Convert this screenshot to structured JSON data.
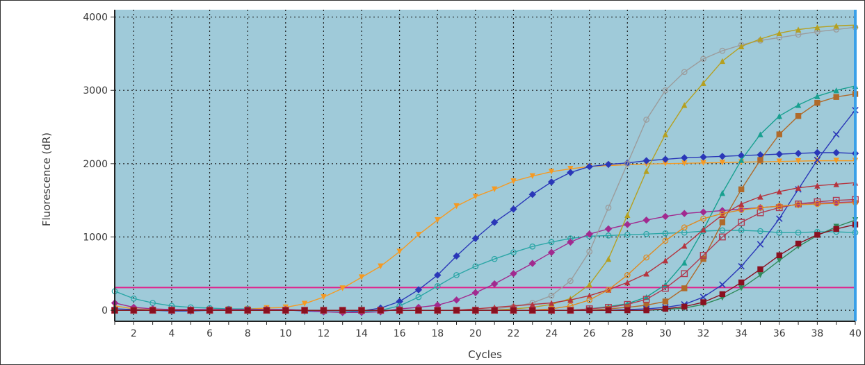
{
  "chart_data": {
    "type": "line",
    "title": "",
    "xlabel": "Cycles",
    "ylabel": "Fluorescence (dR)",
    "xlim": [
      1,
      40
    ],
    "ylim": [
      -150,
      4100
    ],
    "x_ticks": [
      "2",
      "4",
      "6",
      "8",
      "10",
      "12",
      "14",
      "16",
      "18",
      "20",
      "22",
      "24",
      "26",
      "28",
      "30",
      "32",
      "34",
      "36",
      "38",
      "40"
    ],
    "y_ticks": [
      "0",
      "1000",
      "2000",
      "3000",
      "4000"
    ],
    "grid": true,
    "legend": "none",
    "threshold": 310,
    "colors": {
      "plot_background": "#9fcad9",
      "grid": "#1a1a1a",
      "axis": "#222222",
      "threshold": "#e0218a",
      "end_marker": "#3aa0e8"
    },
    "series": [
      {
        "color": "#f59a23",
        "marker": "triangle-down",
        "values": [
          60,
          20,
          10,
          5,
          5,
          10,
          15,
          20,
          30,
          40,
          90,
          180,
          300,
          450,
          600,
          800,
          1030,
          1230,
          1420,
          1550,
          1650,
          1760,
          1830,
          1890,
          1930,
          1960,
          1975,
          1985,
          1995,
          2000,
          2005,
          2010,
          2015,
          2020,
          2025,
          2030,
          2035,
          2040,
          2040,
          2040
        ]
      },
      {
        "color": "#2a37b8",
        "marker": "diamond",
        "values": [
          20,
          10,
          0,
          -10,
          -10,
          0,
          5,
          5,
          10,
          5,
          -10,
          -20,
          -20,
          -10,
          30,
          120,
          280,
          480,
          740,
          980,
          1200,
          1380,
          1580,
          1750,
          1880,
          1960,
          1990,
          2010,
          2040,
          2060,
          2080,
          2090,
          2100,
          2110,
          2120,
          2130,
          2140,
          2150,
          2150,
          2140
        ]
      },
      {
        "color": "#2aa6a6",
        "marker": "circle",
        "values": [
          260,
          160,
          100,
          60,
          40,
          30,
          20,
          20,
          10,
          10,
          0,
          -20,
          -20,
          -20,
          0,
          60,
          180,
          330,
          480,
          600,
          700,
          790,
          870,
          930,
          980,
          1010,
          1020,
          1030,
          1040,
          1050,
          1060,
          1080,
          1090,
          1090,
          1080,
          1060,
          1060,
          1070,
          1070,
          1060
        ]
      },
      {
        "color": "#a12a8f",
        "marker": "diamond",
        "values": [
          100,
          40,
          20,
          10,
          10,
          10,
          10,
          10,
          10,
          10,
          0,
          -20,
          -30,
          -30,
          -20,
          20,
          40,
          70,
          140,
          240,
          360,
          500,
          640,
          790,
          930,
          1040,
          1110,
          1170,
          1230,
          1280,
          1320,
          1340,
          1360,
          1380,
          1400,
          1420,
          1440,
          1460,
          1470,
          1480
        ]
      },
      {
        "color": "#9c9c9c",
        "marker": "circle",
        "values": [
          0,
          0,
          0,
          0,
          0,
          0,
          0,
          0,
          0,
          0,
          0,
          0,
          0,
          0,
          0,
          0,
          0,
          0,
          0,
          10,
          20,
          50,
          100,
          200,
          400,
          800,
          1400,
          2000,
          2600,
          3000,
          3250,
          3430,
          3540,
          3620,
          3680,
          3720,
          3760,
          3800,
          3830,
          3860
        ]
      },
      {
        "color": "#b5a020",
        "marker": "triangle-up",
        "values": [
          0,
          0,
          0,
          0,
          0,
          0,
          0,
          0,
          0,
          0,
          0,
          0,
          0,
          0,
          0,
          0,
          0,
          0,
          0,
          0,
          0,
          20,
          40,
          80,
          160,
          350,
          700,
          1300,
          1900,
          2400,
          2800,
          3100,
          3400,
          3600,
          3700,
          3780,
          3830,
          3860,
          3880,
          3890
        ]
      },
      {
        "color": "#18a090",
        "marker": "triangle-up",
        "values": [
          0,
          0,
          0,
          0,
          0,
          0,
          0,
          0,
          0,
          0,
          0,
          0,
          0,
          0,
          0,
          0,
          0,
          0,
          0,
          0,
          0,
          0,
          0,
          0,
          0,
          20,
          50,
          90,
          180,
          350,
          650,
          1100,
          1600,
          2050,
          2400,
          2650,
          2800,
          2920,
          3000,
          3060
        ]
      },
      {
        "color": "#b06a2a",
        "marker": "square",
        "values": [
          0,
          0,
          0,
          0,
          0,
          0,
          0,
          0,
          0,
          0,
          0,
          0,
          0,
          0,
          0,
          0,
          0,
          0,
          0,
          0,
          0,
          0,
          0,
          0,
          0,
          0,
          20,
          40,
          70,
          120,
          300,
          700,
          1200,
          1650,
          2050,
          2400,
          2650,
          2830,
          2910,
          2950
        ]
      },
      {
        "color": "#2a37b8",
        "marker": "x",
        "values": [
          0,
          0,
          0,
          0,
          0,
          0,
          0,
          0,
          0,
          0,
          0,
          0,
          0,
          0,
          0,
          0,
          0,
          0,
          0,
          0,
          0,
          0,
          0,
          0,
          0,
          0,
          0,
          10,
          20,
          40,
          80,
          180,
          350,
          600,
          900,
          1250,
          1650,
          2050,
          2400,
          2730
        ]
      },
      {
        "color": "#b5343e",
        "marker": "triangle-up",
        "values": [
          0,
          0,
          0,
          0,
          0,
          0,
          0,
          0,
          0,
          0,
          0,
          0,
          0,
          0,
          0,
          0,
          0,
          0,
          0,
          20,
          40,
          60,
          80,
          100,
          140,
          200,
          280,
          380,
          500,
          680,
          880,
          1100,
          1300,
          1450,
          1550,
          1620,
          1670,
          1700,
          1720,
          1740
        ]
      },
      {
        "color": "#b03a50",
        "marker": "square-open",
        "values": [
          0,
          0,
          0,
          0,
          0,
          0,
          0,
          0,
          0,
          0,
          0,
          0,
          0,
          0,
          0,
          0,
          0,
          0,
          0,
          0,
          0,
          0,
          0,
          0,
          0,
          20,
          40,
          80,
          150,
          300,
          500,
          750,
          1000,
          1200,
          1330,
          1400,
          1450,
          1480,
          1500,
          1510
        ]
      },
      {
        "color": "#e08a20",
        "marker": "circle",
        "values": [
          0,
          0,
          0,
          0,
          0,
          0,
          0,
          0,
          0,
          0,
          0,
          0,
          0,
          0,
          0,
          0,
          0,
          0,
          0,
          0,
          0,
          0,
          0,
          20,
          60,
          140,
          280,
          480,
          720,
          950,
          1130,
          1250,
          1320,
          1370,
          1400,
          1420,
          1440,
          1450,
          1460,
          1470
        ]
      },
      {
        "color": "#2f8a5a",
        "marker": "triangle-down",
        "values": [
          0,
          0,
          0,
          0,
          0,
          0,
          0,
          0,
          0,
          0,
          0,
          0,
          0,
          0,
          0,
          0,
          0,
          0,
          0,
          0,
          0,
          0,
          0,
          0,
          0,
          0,
          0,
          0,
          0,
          10,
          30,
          80,
          170,
          300,
          480,
          680,
          870,
          1020,
          1140,
          1230
        ]
      },
      {
        "color": "#8a1020",
        "marker": "square",
        "values": [
          0,
          0,
          0,
          0,
          0,
          0,
          0,
          0,
          0,
          0,
          0,
          0,
          0,
          0,
          0,
          0,
          0,
          0,
          0,
          0,
          0,
          0,
          0,
          0,
          0,
          0,
          0,
          0,
          0,
          20,
          50,
          110,
          220,
          380,
          560,
          750,
          910,
          1030,
          1110,
          1170
        ]
      }
    ]
  }
}
